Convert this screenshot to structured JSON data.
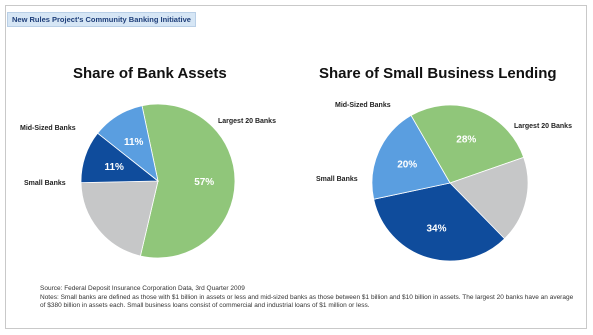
{
  "banner": "New Rules Project's Community Banking Initiative",
  "chart_data": [
    {
      "type": "pie",
      "title": "Share of Bank Assets",
      "slices": [
        {
          "label": "Largest 20 Banks",
          "value": 57,
          "value_label": "57%",
          "color": "#90c67a"
        },
        {
          "label": "",
          "value": 21,
          "value_label": "",
          "color": "#c6c7c8"
        },
        {
          "label": "Small Banks",
          "value": 11,
          "value_label": "11%",
          "color": "#0f4c9c"
        },
        {
          "label": "Mid-Sized Banks",
          "value": 11,
          "value_label": "11%",
          "color": "#5a9ee0"
        }
      ]
    },
    {
      "type": "pie",
      "title": "Share of Small Business Lending",
      "slices": [
        {
          "label": "Largest 20 Banks",
          "value": 28,
          "value_label": "28%",
          "color": "#90c67a"
        },
        {
          "label": "",
          "value": 18,
          "value_label": "",
          "color": "#c6c7c8"
        },
        {
          "label": "Small Banks",
          "value": 34,
          "value_label": "34%",
          "color": "#0f4c9c"
        },
        {
          "label": "Mid-Sized Banks",
          "value": 20,
          "value_label": "20%",
          "color": "#5a9ee0"
        }
      ]
    }
  ],
  "footnote": {
    "source": "Source: Federal Deposit Insurance Corporation Data, 3rd Quarter 2009",
    "notes": "Notes: Small banks are defined as those with $1 billion in assets or less and mid-sized banks as those between $1 billion and $10 billion in assets.  The largest 20 banks have an average of $380 billion in assets each.  Small business loans consist of commercial and industrial loans of $1 million or less."
  }
}
